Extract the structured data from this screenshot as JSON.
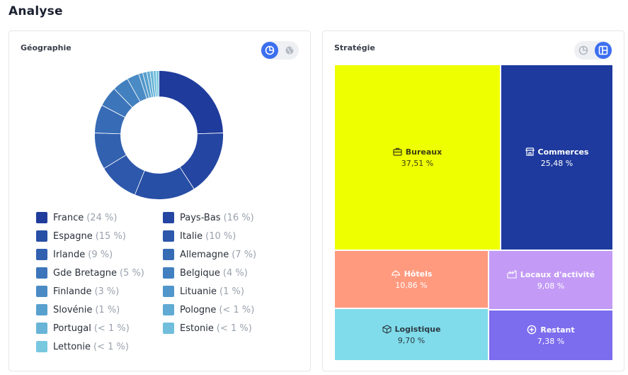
{
  "page": {
    "title": "Analyse"
  },
  "geography": {
    "title": "Géographie",
    "toggle": {
      "active": "pie-chart-icon",
      "inactive": "globe-icon"
    },
    "chart_data": {
      "type": "pie",
      "donut": true,
      "legend_position": "bottom",
      "slices": [
        {
          "label": "France",
          "value": 24,
          "display": "(24 %)",
          "color": "#1f3c9c"
        },
        {
          "label": "Pays-Bas",
          "value": 16,
          "display": "(16 %)",
          "color": "#2446a2"
        },
        {
          "label": "Espagne",
          "value": 15,
          "display": "(15 %)",
          "color": "#284fa6"
        },
        {
          "label": "Italie",
          "value": 10,
          "display": "(10 %)",
          "color": "#2d58ab"
        },
        {
          "label": "Irlande",
          "value": 9,
          "display": "(9 %)",
          "color": "#3261b0"
        },
        {
          "label": "Allemagne",
          "value": 7,
          "display": "(7 %)",
          "color": "#376bb5"
        },
        {
          "label": "Gde Bretagne",
          "value": 5,
          "display": "(5 %)",
          "color": "#3d75ba"
        },
        {
          "label": "Belgique",
          "value": 4,
          "display": "(4 %)",
          "color": "#4280bf"
        },
        {
          "label": "Finlande",
          "value": 3,
          "display": "(3 %)",
          "color": "#4a8bc5"
        },
        {
          "label": "Lituanie",
          "value": 1,
          "display": "(1 %)",
          "color": "#5196ca"
        },
        {
          "label": "Slovénie",
          "value": 1,
          "display": "(1 %)",
          "color": "#58a0ce"
        },
        {
          "label": "Pologne",
          "value": 0.8,
          "display": "(< 1 %)",
          "color": "#60aad3"
        },
        {
          "label": "Portugal",
          "value": 0.8,
          "display": "(< 1 %)",
          "color": "#68b4d7"
        },
        {
          "label": "Estonie",
          "value": 0.7,
          "display": "(< 1 %)",
          "color": "#70bedc"
        },
        {
          "label": "Lettonie",
          "value": 0.7,
          "display": "(< 1 %)",
          "color": "#78c8e0"
        }
      ]
    }
  },
  "strategy": {
    "title": "Stratégie",
    "toggle": {
      "active": "treemap-icon",
      "inactive": "pie-chart-icon"
    },
    "chart_data": {
      "type": "treemap",
      "items": [
        {
          "label": "Bureaux",
          "value": 37.51,
          "display": "37,51 %",
          "color": "#eeff00",
          "text_color": "#3d3f12",
          "icon": "briefcase-icon"
        },
        {
          "label": "Commerces",
          "value": 25.48,
          "display": "25,48 %",
          "color": "#1e3a9e",
          "text_color": "#ffffff",
          "icon": "store-icon"
        },
        {
          "label": "Hôtels",
          "value": 10.86,
          "display": "10,86 %",
          "color": "#ff9a7e",
          "text_color": "#ffffff",
          "icon": "bell-icon"
        },
        {
          "label": "Locaux d'activité",
          "value": 9.08,
          "display": "9,08 %",
          "color": "#c39bf6",
          "text_color": "#ffffff",
          "icon": "factory-icon"
        },
        {
          "label": "Logistique",
          "value": 9.7,
          "display": "9,70 %",
          "color": "#80dcea",
          "text_color": "#2c3a44",
          "icon": "box-icon"
        },
        {
          "label": "Restant",
          "value": 7.38,
          "display": "7,38 %",
          "color": "#7c6cee",
          "text_color": "#ffffff",
          "icon": "plus-circle-icon"
        }
      ]
    }
  }
}
